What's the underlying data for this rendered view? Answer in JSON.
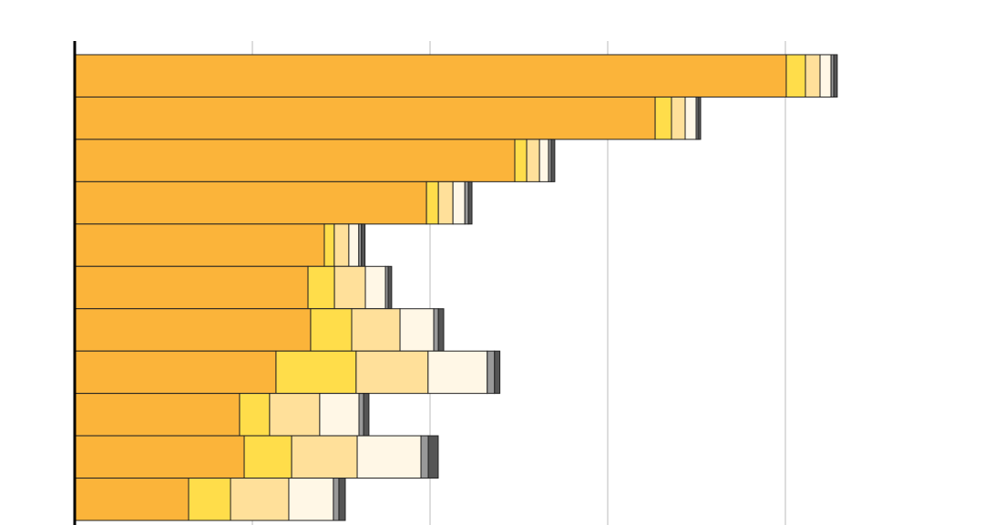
{
  "chart_data": {
    "type": "stacked-barh",
    "categories": [
      null,
      null,
      null,
      null,
      null,
      null,
      null,
      null,
      null,
      null,
      null
    ],
    "series": [
      {
        "color": "#fbb43a",
        "values": [
          400.5,
          326.7,
          247.7,
          198,
          140.5,
          131.3,
          132.8,
          113.3,
          92.8,
          95.4,
          64.1
        ]
      },
      {
        "color": "#ffdd4a",
        "values": [
          10.8,
          9.2,
          6.7,
          6.7,
          5.6,
          14.9,
          23.1,
          45.1,
          16.9,
          26.7,
          23.6
        ]
      },
      {
        "color": "#ffe09a",
        "values": [
          8.2,
          7.7,
          7.2,
          8.2,
          8.2,
          17.4,
          27.2,
          40.5,
          28.2,
          36.9,
          32.8
        ]
      },
      {
        "color": "#fff7e6",
        "values": [
          6.2,
          6.2,
          5.1,
          6.7,
          5.6,
          11.3,
          19,
          33.3,
          22.1,
          35.9,
          25.1
        ]
      },
      {
        "color": "#999999",
        "values": [
          1.5,
          1,
          1.5,
          2,
          1.5,
          1.5,
          2.6,
          4.1,
          2.6,
          4.1,
          3.1
        ]
      },
      {
        "color": "#555555",
        "values": [
          2,
          1.5,
          2,
          2,
          2,
          2,
          3,
          3,
          3,
          5.6,
          3.6
        ]
      }
    ],
    "xlim": [
      0,
      500
    ],
    "xticks": [
      100,
      200,
      300,
      400
    ],
    "grid": true
  }
}
